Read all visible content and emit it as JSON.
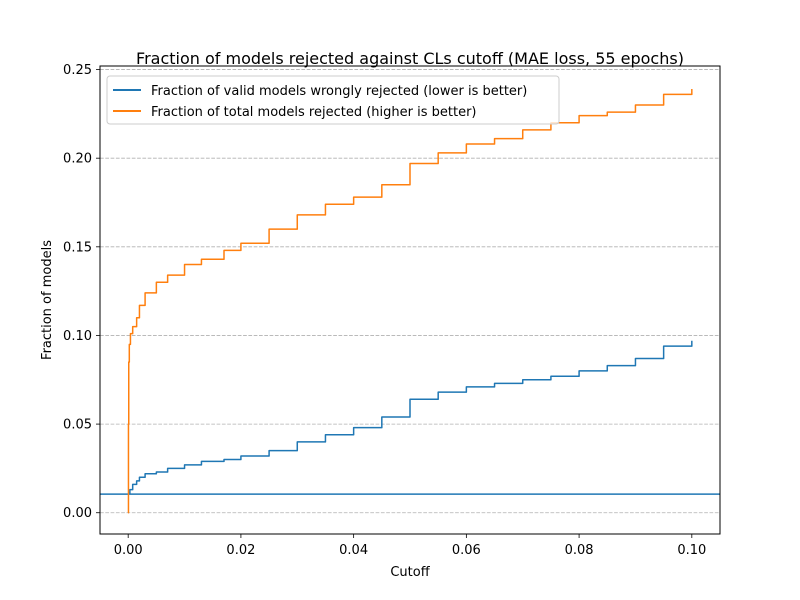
{
  "chart_data": {
    "type": "line",
    "title": "Fraction of models rejected against CLs cutoff (MAE loss, 55 epochs)",
    "xlabel": "Cutoff",
    "ylabel": "Fraction of models",
    "xlim": [
      -0.005,
      0.105
    ],
    "ylim": [
      -0.012,
      0.252
    ],
    "x_ticks": [
      0.0,
      0.02,
      0.04,
      0.06,
      0.08,
      0.1
    ],
    "x_tick_labels": [
      "0.00",
      "0.02",
      "0.04",
      "0.06",
      "0.08",
      "0.10"
    ],
    "y_ticks": [
      0.0,
      0.05,
      0.1,
      0.15,
      0.2,
      0.25
    ],
    "y_tick_labels": [
      "0.00",
      "0.05",
      "0.10",
      "0.15",
      "0.20",
      "0.25"
    ],
    "grid": "horizontal dashed",
    "legend_position": "upper-left",
    "reference_line": {
      "y": 0.0105,
      "color": "#1f77b4"
    },
    "series": [
      {
        "name": "Fraction of valid models wrongly rejected (lower is better)",
        "color": "#1f77b4",
        "x": [
          0.0,
          0.0003,
          0.0008,
          0.0015,
          0.002,
          0.003,
          0.005,
          0.007,
          0.01,
          0.013,
          0.017,
          0.02,
          0.025,
          0.03,
          0.035,
          0.04,
          0.045,
          0.05,
          0.055,
          0.06,
          0.065,
          0.07,
          0.075,
          0.08,
          0.085,
          0.09,
          0.095,
          0.1
        ],
        "y": [
          0.011,
          0.013,
          0.016,
          0.018,
          0.02,
          0.022,
          0.023,
          0.025,
          0.027,
          0.029,
          0.03,
          0.032,
          0.035,
          0.04,
          0.044,
          0.048,
          0.054,
          0.064,
          0.068,
          0.071,
          0.073,
          0.075,
          0.077,
          0.08,
          0.083,
          0.087,
          0.094,
          0.097
        ]
      },
      {
        "name": "Fraction of total models rejected (higher is better)",
        "color": "#ff7f0e",
        "x": [
          0.0,
          5e-05,
          0.0001,
          0.0002,
          0.0004,
          0.0008,
          0.0015,
          0.002,
          0.003,
          0.005,
          0.007,
          0.01,
          0.013,
          0.017,
          0.02,
          0.025,
          0.03,
          0.035,
          0.04,
          0.045,
          0.05,
          0.055,
          0.06,
          0.065,
          0.07,
          0.075,
          0.08,
          0.085,
          0.09,
          0.095,
          0.1
        ],
        "y": [
          0.0,
          0.05,
          0.085,
          0.095,
          0.101,
          0.105,
          0.11,
          0.117,
          0.124,
          0.13,
          0.134,
          0.14,
          0.143,
          0.148,
          0.152,
          0.16,
          0.168,
          0.174,
          0.178,
          0.185,
          0.197,
          0.203,
          0.208,
          0.211,
          0.216,
          0.22,
          0.224,
          0.226,
          0.23,
          0.236,
          0.239
        ]
      }
    ]
  }
}
